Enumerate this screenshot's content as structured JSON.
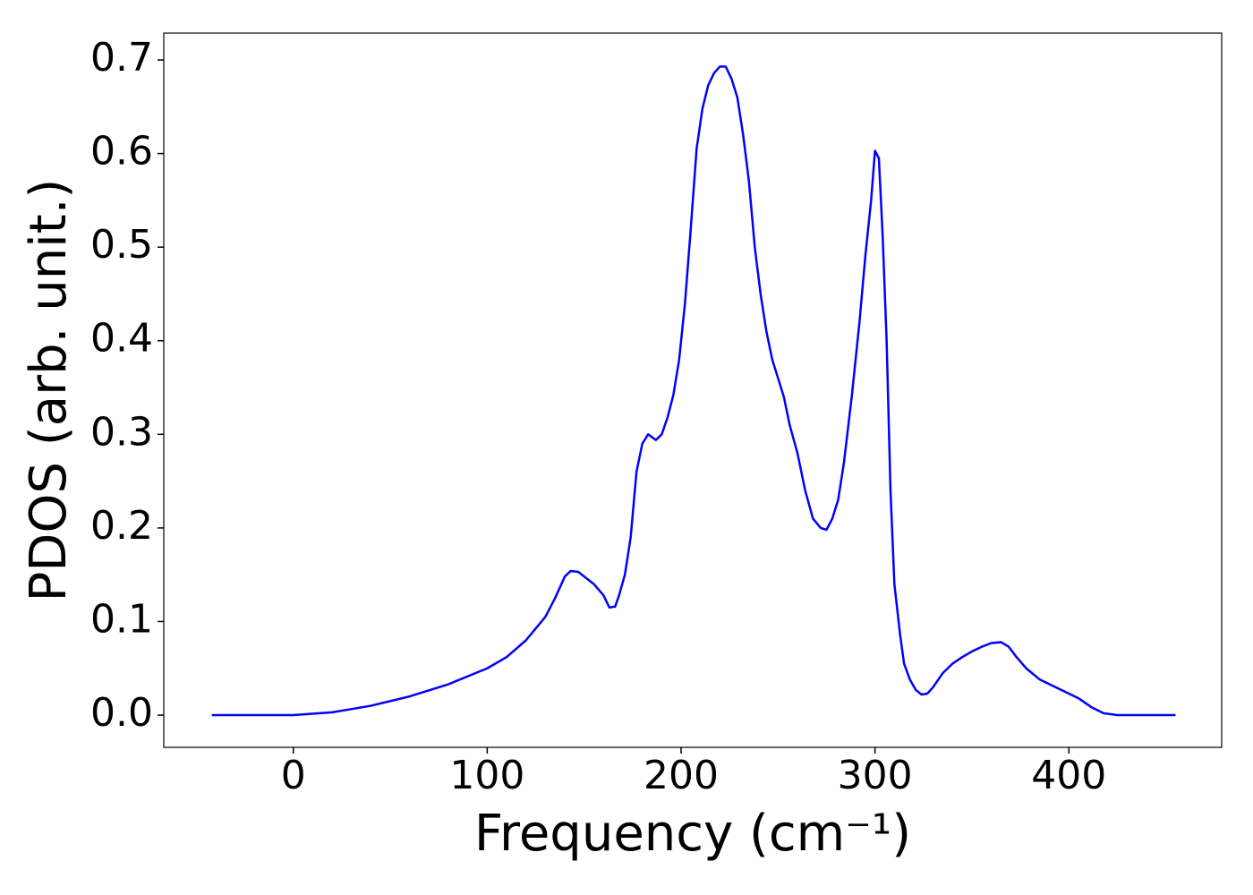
{
  "chart_data": {
    "type": "line",
    "xlabel": "Frequency (cm⁻¹)",
    "ylabel": "PDOS (arb. unit.)",
    "xlim": [
      -66.8,
      478.8
    ],
    "xticks": [
      0,
      100,
      200,
      300,
      400
    ],
    "ylim": [
      -0.0344,
      0.7287
    ],
    "yticks": [
      {
        "value": 0,
        "label": "0.0"
      },
      0.1,
      0.2,
      0.3,
      0.4,
      0.5,
      0.6,
      0.7
    ],
    "series": [
      {
        "color": "#0000ff",
        "x": [
          -42,
          0,
          20,
          40,
          60,
          80,
          100,
          110,
          120,
          130,
          135,
          140,
          143,
          147,
          155,
          160,
          163,
          166,
          168,
          171,
          174,
          177,
          180,
          183,
          187,
          190,
          193,
          196,
          199,
          202,
          205,
          208,
          211,
          214,
          217,
          220,
          223,
          226,
          229,
          232,
          235,
          238,
          241,
          244,
          247,
          250,
          253,
          256,
          260,
          264,
          268,
          272,
          275,
          278,
          281,
          284,
          288,
          292,
          295,
          298,
          300,
          302,
          304,
          306,
          308,
          310,
          313,
          315,
          318,
          321,
          324,
          327,
          330,
          335,
          340,
          345,
          350,
          355,
          360,
          365,
          369,
          373,
          378,
          385,
          395,
          405,
          412,
          418,
          425,
          455
        ],
        "values": [
          0,
          0,
          0.003,
          0.01,
          0.02,
          0.033,
          0.05,
          0.062,
          0.08,
          0.105,
          0.125,
          0.148,
          0.154,
          0.153,
          0.14,
          0.128,
          0.115,
          0.116,
          0.128,
          0.15,
          0.19,
          0.26,
          0.29,
          0.3,
          0.294,
          0.3,
          0.318,
          0.342,
          0.38,
          0.44,
          0.52,
          0.605,
          0.648,
          0.673,
          0.686,
          0.693,
          0.693,
          0.68,
          0.66,
          0.62,
          0.57,
          0.5,
          0.45,
          0.41,
          0.38,
          0.36,
          0.34,
          0.31,
          0.28,
          0.24,
          0.21,
          0.2,
          0.198,
          0.21,
          0.23,
          0.27,
          0.34,
          0.42,
          0.49,
          0.55,
          0.603,
          0.595,
          0.51,
          0.4,
          0.24,
          0.14,
          0.085,
          0.055,
          0.038,
          0.027,
          0.022,
          0.023,
          0.03,
          0.045,
          0.055,
          0.062,
          0.068,
          0.073,
          0.077,
          0.078,
          0.073,
          0.062,
          0.05,
          0.038,
          0.028,
          0.018,
          0.008,
          0.002,
          0,
          0
        ]
      }
    ]
  }
}
